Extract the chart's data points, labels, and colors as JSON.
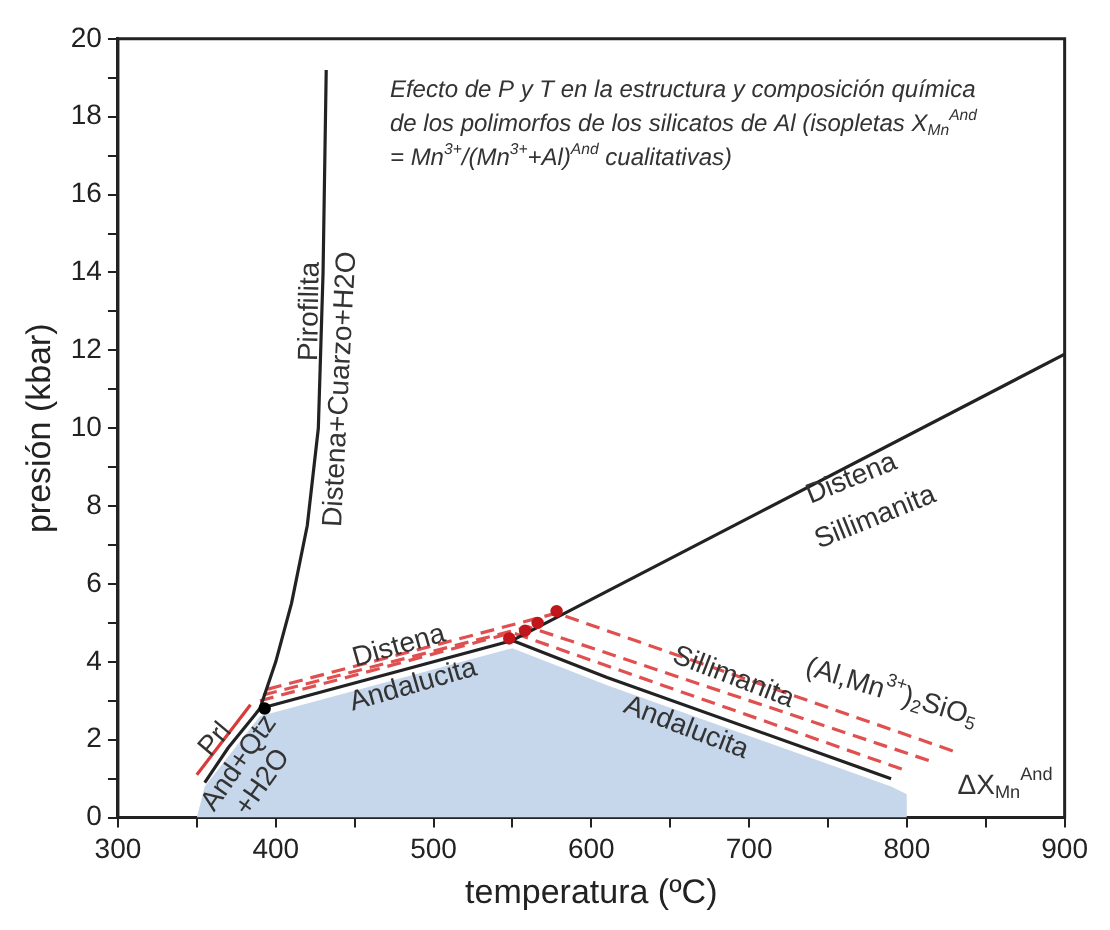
{
  "chart_data": {
    "type": "line",
    "xlabel": "temperatura (ºC)",
    "ylabel": "presión (kbar)",
    "xlim": [
      300,
      900
    ],
    "ylim": [
      0,
      20
    ],
    "xticks": [
      300,
      {
        "value": 350,
        "label": null
      },
      400,
      {
        "value": 450,
        "label": null
      },
      500,
      {
        "value": 550,
        "label": null
      },
      600,
      {
        "value": 650,
        "label": null
      },
      700,
      {
        "value": 750,
        "label": null
      },
      800,
      {
        "value": 850,
        "label": null
      },
      900
    ],
    "yticks": [
      0,
      {
        "value": 1,
        "label": null
      },
      2,
      {
        "value": 3,
        "label": null
      },
      4,
      {
        "value": 5,
        "label": null
      },
      6,
      {
        "value": 7,
        "label": null
      },
      8,
      {
        "value": 9,
        "label": null
      },
      10,
      {
        "value": 11,
        "label": null
      },
      12,
      {
        "value": 13,
        "label": null
      },
      14,
      {
        "value": 15,
        "label": null
      },
      16,
      {
        "value": 17,
        "label": null
      },
      18,
      {
        "value": 19,
        "label": null
      },
      20
    ],
    "grid": false,
    "legend": false,
    "series": [
      {
        "type": "scatter",
        "color": "#c0161c",
        "marker": "circle",
        "x": [
          548,
          558,
          566,
          578
        ],
        "values": [
          4.6,
          4.8,
          5.0,
          5.3
        ]
      },
      {
        "type": "scatter",
        "color": "#000000",
        "marker": "circle",
        "x": [
          393
        ],
        "values": [
          2.8
        ]
      },
      {
        "type": "line",
        "color": "#222222",
        "x": [
          355,
          370,
          390,
          400,
          410,
          420,
          427,
          430,
          432
        ],
        "values": [
          0.9,
          1.8,
          2.8,
          4,
          5.5,
          7.5,
          10,
          14,
          19.2
        ]
      },
      {
        "type": "line",
        "color": "#222222",
        "x": [
          390,
          550
        ],
        "values": [
          2.8,
          4.55
        ]
      },
      {
        "type": "line",
        "color": "#222222",
        "x": [
          550,
          900
        ],
        "values": [
          4.55,
          11.9
        ]
      },
      {
        "type": "line",
        "color": "#222222",
        "x": [
          550,
          610,
          790
        ],
        "values": [
          4.55,
          3.6,
          1.0
        ]
      },
      {
        "type": "line",
        "color": "#d93a3a",
        "x": [
          350,
          384
        ],
        "values": [
          1.1,
          2.9
        ]
      },
      {
        "type": "line",
        "color": "#e05050",
        "line_style": "dashed",
        "x": [
          390,
          550,
          800
        ],
        "values": [
          3.0,
          4.75,
          1.2
        ]
      },
      {
        "type": "line",
        "color": "#e05050",
        "line_style": "dashed",
        "x": [
          392,
          560,
          815
        ],
        "values": [
          3.15,
          4.9,
          1.45
        ]
      },
      {
        "type": "line",
        "color": "#e05050",
        "line_style": "dashed",
        "x": [
          395,
          578,
          830
        ],
        "values": [
          3.3,
          5.25,
          1.7
        ]
      },
      {
        "type": "area",
        "color": "#c6d6eb",
        "x": [
          350,
          355,
          390,
          550,
          610,
          790,
          800,
          800
        ],
        "values": [
          0,
          0.8,
          2.6,
          4.35,
          3.4,
          0.8,
          0.6,
          0
        ]
      }
    ],
    "annotations": [
      "Efecto de P y T en la estructura y composición química de los polimorfos de los silicatos de Al (isopletas X$_{Mn}$$^{And}$ = Mn$^{3+}$/(Mn$^{3+}$+Al)$^{And}$ cualitativas)",
      "Pirofilita",
      "Distena+Cuarzo+H2O",
      "Distena",
      "Sillimanita",
      "Distena",
      "Andalucita",
      "Sillimanita",
      "Andalucita",
      "Prl",
      "And+Qtz",
      "+H2O",
      "(Al,Mn$^{3+}$)$_{2}$SiO$_{5}$",
      "ΔX$_{Mn}$$^{And}$"
    ]
  }
}
